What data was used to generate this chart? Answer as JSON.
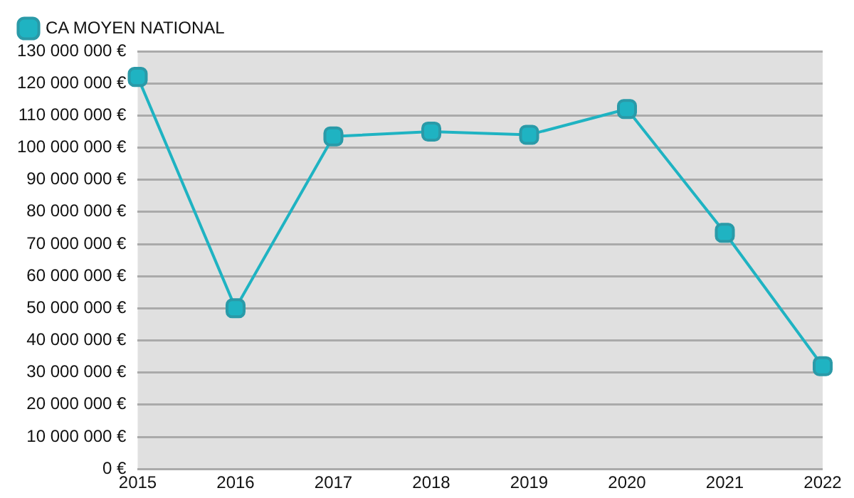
{
  "chart_data": {
    "type": "line",
    "categories": [
      "2015",
      "2016",
      "2017",
      "2018",
      "2019",
      "2020",
      "2021",
      "2022"
    ],
    "series": [
      {
        "name": "CA MOYEN NATIONAL",
        "color": "#1fb3c2",
        "values": [
          122000000,
          50000000,
          103500000,
          105000000,
          104000000,
          112000000,
          73500000,
          32000000
        ]
      }
    ],
    "ylim": [
      0,
      130000000
    ],
    "yticks": [
      {
        "value": 0,
        "label": "0 €"
      },
      {
        "value": 10000000,
        "label": "10 000 000 €"
      },
      {
        "value": 20000000,
        "label": "20 000 000 €"
      },
      {
        "value": 30000000,
        "label": "30 000 000 €"
      },
      {
        "value": 40000000,
        "label": "40 000 000 €"
      },
      {
        "value": 50000000,
        "label": "50 000 000 €"
      },
      {
        "value": 60000000,
        "label": "60 000 000 €"
      },
      {
        "value": 70000000,
        "label": "70 000 000 €"
      },
      {
        "value": 80000000,
        "label": "80 000 000 €"
      },
      {
        "value": 90000000,
        "label": "90 000 000 €"
      },
      {
        "value": 100000000,
        "label": "100 000 000 €"
      },
      {
        "value": 110000000,
        "label": "110 000 000 €"
      },
      {
        "value": 120000000,
        "label": "120 000 000 €"
      },
      {
        "value": 130000000,
        "label": "130 000 000 €"
      }
    ],
    "grid": "y",
    "legend": "top left",
    "marker": "square",
    "line_style": "solid"
  }
}
